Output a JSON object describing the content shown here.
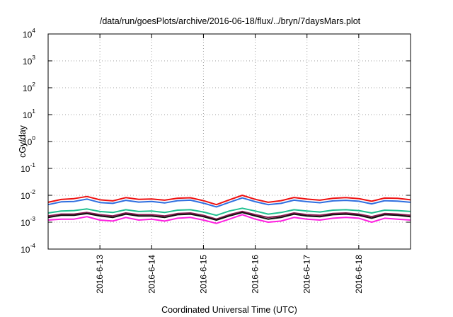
{
  "chart_data": {
    "type": "line",
    "title": "/data/run/goesPlots/archive/2016-06-18/flux/../bryn/7daysMars.plot",
    "xlabel": "Coordinated Universal Time (UTC)",
    "ylabel": "cGy/day",
    "yscale": "log",
    "ylim": [
      0.0001,
      10000
    ],
    "y_ticks": [
      {
        "value": 0.0001,
        "base": "10",
        "exp": "-4"
      },
      {
        "value": 0.001,
        "base": "10",
        "exp": "-3"
      },
      {
        "value": 0.01,
        "base": "10",
        "exp": "-2"
      },
      {
        "value": 0.1,
        "base": "10",
        "exp": "-1"
      },
      {
        "value": 1,
        "base": "10",
        "exp": "0"
      },
      {
        "value": 10,
        "base": "10",
        "exp": "1"
      },
      {
        "value": 100,
        "base": "10",
        "exp": "2"
      },
      {
        "value": 1000,
        "base": "10",
        "exp": "3"
      },
      {
        "value": 10000,
        "base": "10",
        "exp": "4"
      }
    ],
    "xlim": [
      "2016-06-12T00:00",
      "2016-06-19T00:00"
    ],
    "x_ticks": [
      {
        "value": "2016-06-13T00:00",
        "label": "2016-6-13"
      },
      {
        "value": "2016-06-14T00:00",
        "label": "2016-6-14"
      },
      {
        "value": "2016-06-15T00:00",
        "label": "2016-6-15"
      },
      {
        "value": "2016-06-16T00:00",
        "label": "2016-6-16"
      },
      {
        "value": "2016-06-17T00:00",
        "label": "2016-6-17"
      },
      {
        "value": "2016-06-18T00:00",
        "label": "2016-6-18"
      }
    ],
    "grid": true,
    "legend": "none",
    "x": [
      "2016-06-12T00:00",
      "2016-06-12T06:00",
      "2016-06-12T12:00",
      "2016-06-12T18:00",
      "2016-06-13T00:00",
      "2016-06-13T06:00",
      "2016-06-13T12:00",
      "2016-06-13T18:00",
      "2016-06-14T00:00",
      "2016-06-14T06:00",
      "2016-06-14T12:00",
      "2016-06-14T18:00",
      "2016-06-15T00:00",
      "2016-06-15T06:00",
      "2016-06-15T12:00",
      "2016-06-15T18:00",
      "2016-06-16T00:00",
      "2016-06-16T06:00",
      "2016-06-16T12:00",
      "2016-06-16T18:00",
      "2016-06-17T00:00",
      "2016-06-17T06:00",
      "2016-06-17T12:00",
      "2016-06-17T18:00",
      "2016-06-18T00:00",
      "2016-06-18T06:00",
      "2016-06-18T12:00",
      "2016-06-18T18:00",
      "2016-06-19T00:00"
    ],
    "series": [
      {
        "color": "#ee1111",
        "values": [
          0.0055,
          0.007,
          0.0075,
          0.009,
          0.0068,
          0.0062,
          0.0082,
          0.0071,
          0.0073,
          0.0066,
          0.0078,
          0.0081,
          0.0063,
          0.0045,
          0.0068,
          0.01,
          0.0071,
          0.0055,
          0.0063,
          0.0083,
          0.0072,
          0.0066,
          0.0077,
          0.0082,
          0.0075,
          0.006,
          0.0079,
          0.0077,
          0.0068
        ]
      },
      {
        "color": "#2f6fe0",
        "values": [
          0.0045,
          0.0057,
          0.0059,
          0.0072,
          0.0054,
          0.005,
          0.0065,
          0.0056,
          0.0059,
          0.0052,
          0.0063,
          0.0066,
          0.0051,
          0.0037,
          0.0055,
          0.008,
          0.0058,
          0.0045,
          0.005,
          0.0066,
          0.0058,
          0.0053,
          0.0062,
          0.0065,
          0.006,
          0.0048,
          0.0063,
          0.0061,
          0.0055
        ]
      },
      {
        "color": "#20c090",
        "values": [
          0.0022,
          0.0026,
          0.0027,
          0.0031,
          0.0025,
          0.0023,
          0.0029,
          0.0025,
          0.0026,
          0.0023,
          0.0028,
          0.0029,
          0.0024,
          0.0018,
          0.0026,
          0.0033,
          0.0026,
          0.002,
          0.0023,
          0.0029,
          0.0026,
          0.0024,
          0.0028,
          0.0029,
          0.0027,
          0.0022,
          0.0028,
          0.0027,
          0.0025
        ]
      },
      {
        "color": "#8a1a50",
        "values": [
          0.0017,
          0.002,
          0.002,
          0.0023,
          0.0019,
          0.0017,
          0.0022,
          0.0019,
          0.0019,
          0.0017,
          0.0021,
          0.0022,
          0.0018,
          0.0013,
          0.0019,
          0.0025,
          0.0019,
          0.0015,
          0.0017,
          0.0022,
          0.0019,
          0.0018,
          0.0021,
          0.0022,
          0.002,
          0.0016,
          0.0021,
          0.002,
          0.0018
        ]
      },
      {
        "color": "#111111",
        "values": [
          0.0015,
          0.0018,
          0.0018,
          0.0021,
          0.0017,
          0.0015,
          0.002,
          0.0017,
          0.0017,
          0.0015,
          0.0019,
          0.002,
          0.0016,
          0.0012,
          0.0017,
          0.0023,
          0.0017,
          0.0013,
          0.0015,
          0.002,
          0.0017,
          0.0016,
          0.0019,
          0.002,
          0.0018,
          0.0014,
          0.0019,
          0.0018,
          0.0016
        ]
      },
      {
        "color": "#ff20e0",
        "values": [
          0.0012,
          0.0013,
          0.0013,
          0.0016,
          0.0012,
          0.0011,
          0.0015,
          0.0012,
          0.0013,
          0.0011,
          0.0014,
          0.0015,
          0.0012,
          0.0009,
          0.0013,
          0.0019,
          0.0013,
          0.001,
          0.0011,
          0.0015,
          0.0013,
          0.0012,
          0.0014,
          0.0015,
          0.0014,
          0.001,
          0.0014,
          0.0013,
          0.0012
        ]
      }
    ]
  }
}
